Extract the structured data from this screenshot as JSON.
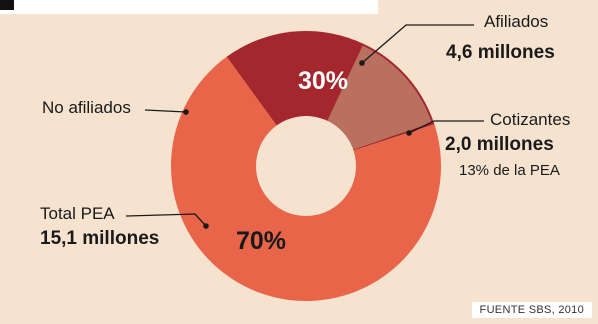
{
  "chart_data": {
    "type": "pie",
    "variant": "donut",
    "slices": [
      {
        "label": "No afiliados",
        "percent": 70,
        "percent_label": "70%",
        "color": "#e8654a"
      },
      {
        "label": "Afiliados",
        "percent": 30,
        "percent_label": "30%",
        "color": "#a3272c",
        "sub_slice": {
          "label": "Cotizantes",
          "percent_of_total": 13,
          "color": "#b9705f"
        }
      }
    ],
    "annotations": {
      "afiliados": {
        "name": "Afiliados",
        "value": "4,6 millones"
      },
      "cotizantes": {
        "name": "Cotizantes",
        "value": "2,0 millones",
        "note": "13% de la PEA"
      },
      "no_afiliados": {
        "name": "No afiliados"
      },
      "total": {
        "name": "Total PEA",
        "value": "15,1 millones"
      }
    },
    "source": "FUENTE SBS, 2010"
  },
  "colors": {
    "panel_bg": "#f6e3cf",
    "no_afiliados": "#e8654a",
    "afiliados": "#a3272c",
    "cotizantes": "#b9705f",
    "leader_line": "#1a1a1a"
  }
}
